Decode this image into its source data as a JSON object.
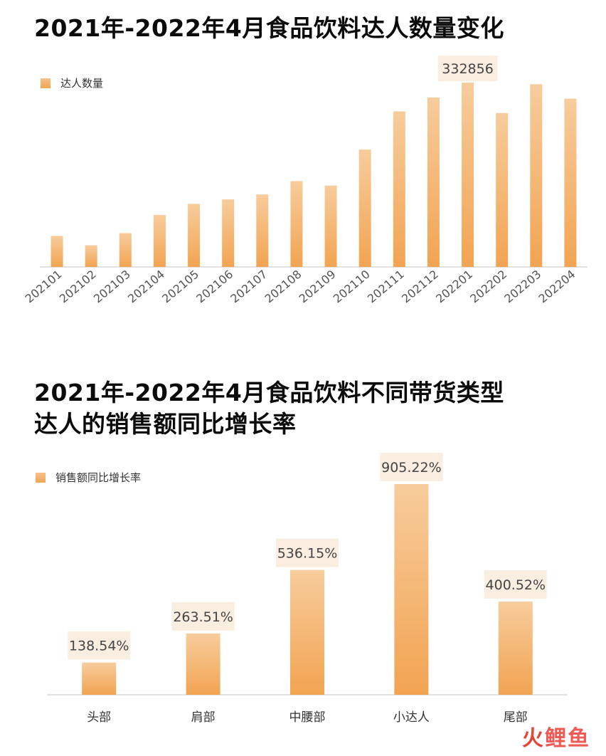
{
  "page": {
    "title1": "2021年-2022年4月食品饮料达人数量变化",
    "title2_line1": "2021年-2022年4月食品饮料不同带货类型",
    "title2_line2": "达人的销售额同比增长率"
  },
  "colors": {
    "bar_top": "#f7cc9c",
    "bar_bottom": "#f2a452",
    "label_bg": "#faeee0",
    "axis": "#d9d9d9",
    "watermark": "#e0473b"
  },
  "watermark": {
    "first_char": "火",
    "rest": "鲤鱼"
  },
  "chart_data": [
    {
      "type": "bar",
      "legend_position": "top-left",
      "legend": [
        "达人数量"
      ],
      "categories": [
        "202101",
        "202102",
        "202103",
        "202104",
        "202105",
        "202106",
        "202107",
        "202108",
        "202109",
        "202110",
        "202111",
        "202112",
        "202201",
        "202202",
        "202203",
        "202204"
      ],
      "series": [
        {
          "name": "达人数量",
          "values": [
            56000,
            39000,
            61000,
            94000,
            114000,
            122000,
            131000,
            155000,
            147000,
            212000,
            281000,
            306000,
            332856,
            278000,
            330000,
            304000
          ],
          "labels": [
            "",
            "",
            "",
            "",
            "",
            "",
            "",
            "",
            "",
            "",
            "",
            "",
            "332856",
            "",
            "",
            ""
          ]
        }
      ],
      "ylim": [
        0,
        360000
      ],
      "grid": false
    },
    {
      "type": "bar",
      "legend_position": "top-left",
      "legend": [
        "销售额同比增长率"
      ],
      "categories": [
        "头部",
        "肩部",
        "中腰部",
        "小达人",
        "尾部"
      ],
      "series": [
        {
          "name": "销售额同比增长率",
          "values": [
            138.54,
            263.51,
            536.15,
            905.22,
            400.52
          ],
          "labels": [
            "138.54%",
            "263.51%",
            "536.15%",
            "905.22%",
            "400.52%"
          ]
        }
      ],
      "ylim": [
        0,
        905.22
      ],
      "grid": false
    }
  ]
}
